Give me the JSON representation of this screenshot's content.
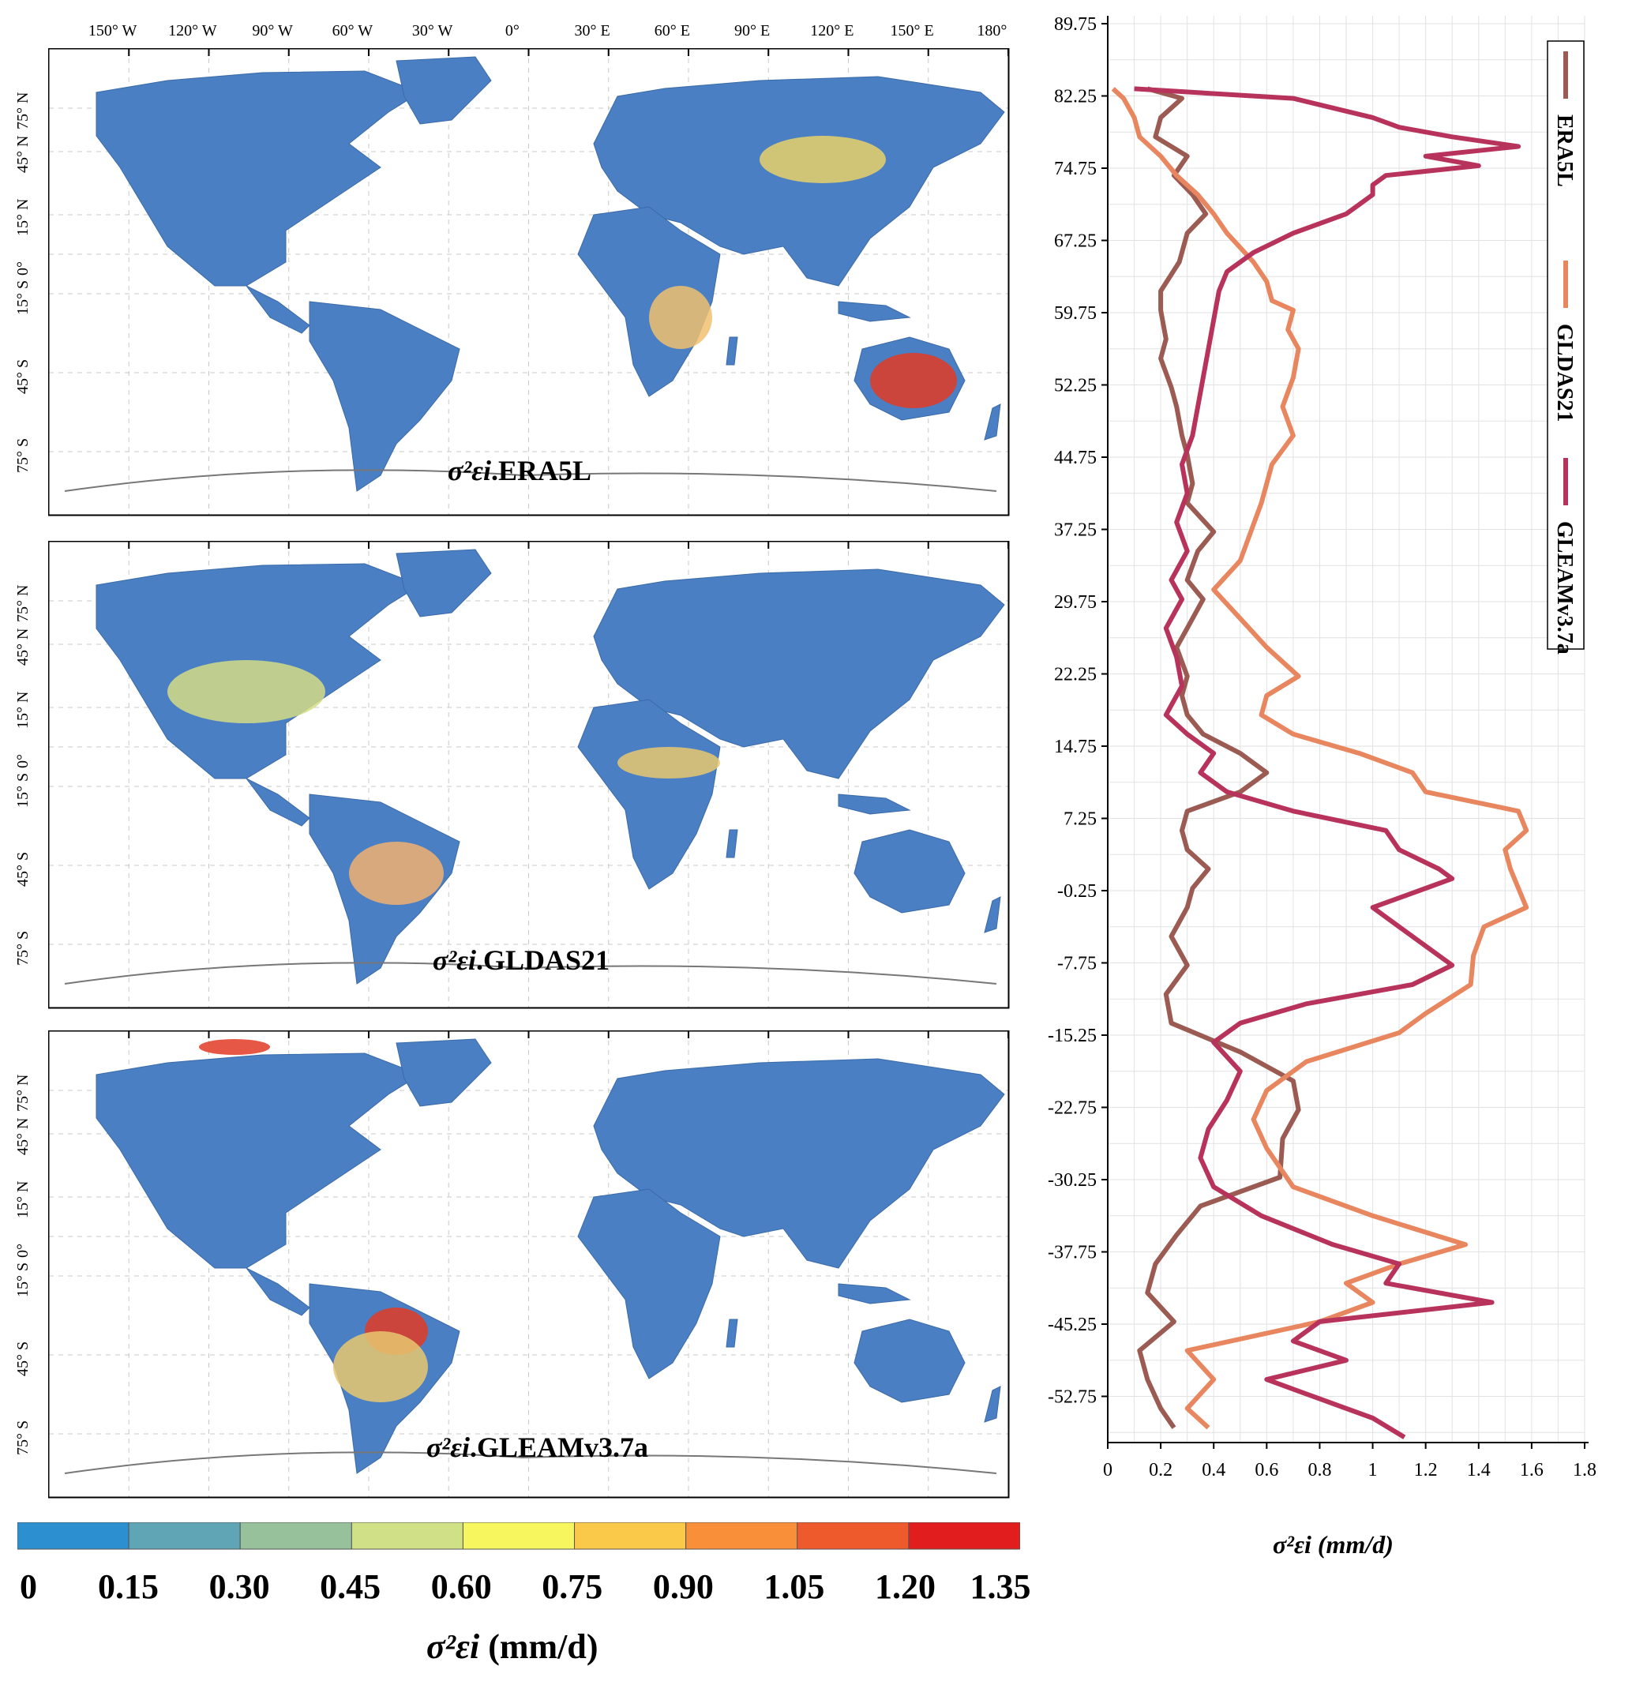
{
  "map": {
    "lon_ticks": [
      "150° W",
      "120° W",
      "90° W",
      "60° W",
      "30° W",
      "0°",
      "30° E",
      "60° E",
      "90° E",
      "120° E",
      "150° E",
      "180°"
    ],
    "lat_ticks": [
      "75° N",
      "45° N",
      "15° N",
      "0°",
      "15° S",
      "45° S",
      "75° S"
    ],
    "panels": [
      {
        "symbol": "σ²εi",
        "name": ".ERA5L"
      },
      {
        "symbol": "σ²εi",
        "name": ".GLDAS21"
      },
      {
        "symbol": "σ²εi",
        "name": ".GLEAMv3.7a"
      }
    ],
    "colorbar": {
      "colors": [
        "#2b8fd0",
        "#5fa5b5",
        "#96c19a",
        "#cfe086",
        "#f7f65e",
        "#fbc94a",
        "#f98f38",
        "#ef5a2c",
        "#e11d1d"
      ],
      "labels": [
        "0",
        "0.15",
        "0.30",
        "0.45",
        "0.60",
        "0.75",
        "0.90",
        "1.05",
        "1.20",
        "1.35"
      ],
      "title_symbol": "σ²εi",
      "title_unit": "(mm/d)"
    }
  },
  "chart_data": {
    "type": "line",
    "orientation": "horizontal-profile",
    "xlabel_symbol": "σ²εi",
    "xlabel_unit": "(mm/d)",
    "xlim": [
      0,
      1.8
    ],
    "ylim": [
      -60,
      89.75
    ],
    "x_ticks": [
      "0",
      "0.2",
      "0.4",
      "0.6",
      "0.8",
      "1",
      "1.2",
      "1.4",
      "1.6",
      "1.8"
    ],
    "y_ticks": [
      "89.75",
      "82.25",
      "74.75",
      "67.25",
      "59.75",
      "52.25",
      "44.75",
      "37.25",
      "29.75",
      "22.25",
      "14.75",
      "7.25",
      "-0.25",
      "-7.75",
      "-15.25",
      "-22.75",
      "-30.25",
      "-37.75",
      "-45.25",
      "-52.75"
    ],
    "legend_position": "top-right",
    "grid": true,
    "series": [
      {
        "name": "ERA5L",
        "color": "#9b5a52",
        "lat": [
          83,
          82,
          80,
          78,
          76,
          74,
          72,
          70,
          68,
          65,
          62,
          60,
          57,
          55,
          52,
          50,
          47,
          45,
          42,
          40,
          37,
          35,
          32,
          30,
          27,
          25,
          22,
          20,
          18,
          16,
          14,
          12,
          10,
          8,
          6,
          4,
          2,
          0,
          -2,
          -5,
          -8,
          -11,
          -14,
          -17,
          -20,
          -23,
          -26,
          -30,
          -33,
          -36,
          -39,
          -42,
          -45,
          -48,
          -51,
          -54,
          -56
        ],
        "x": [
          0.15,
          0.28,
          0.2,
          0.18,
          0.3,
          0.25,
          0.32,
          0.37,
          0.3,
          0.27,
          0.2,
          0.2,
          0.22,
          0.2,
          0.24,
          0.26,
          0.28,
          0.3,
          0.32,
          0.3,
          0.4,
          0.34,
          0.3,
          0.36,
          0.3,
          0.26,
          0.3,
          0.28,
          0.3,
          0.36,
          0.5,
          0.6,
          0.5,
          0.3,
          0.28,
          0.3,
          0.38,
          0.32,
          0.3,
          0.24,
          0.3,
          0.22,
          0.24,
          0.5,
          0.7,
          0.72,
          0.66,
          0.65,
          0.35,
          0.26,
          0.18,
          0.15,
          0.25,
          0.12,
          0.15,
          0.2,
          0.25
        ]
      },
      {
        "name": "GLDAS21",
        "color": "#e8875f",
        "lat": [
          83,
          82,
          80,
          78,
          76,
          74,
          72,
          70,
          68,
          65,
          63,
          61,
          60,
          58,
          56,
          53,
          50,
          47,
          44,
          40,
          37,
          34,
          31,
          28,
          25,
          22,
          20,
          18,
          16,
          14,
          12,
          10,
          8,
          6,
          4,
          2,
          0,
          -2,
          -4,
          -7,
          -10,
          -13,
          -15,
          -18,
          -21,
          -24,
          -27,
          -31,
          -34,
          -37,
          -39,
          -41,
          -43,
          -45,
          -48,
          -51,
          -54,
          -56
        ],
        "x": [
          0.02,
          0.06,
          0.1,
          0.12,
          0.2,
          0.26,
          0.34,
          0.4,
          0.45,
          0.55,
          0.6,
          0.62,
          0.7,
          0.68,
          0.72,
          0.7,
          0.66,
          0.7,
          0.62,
          0.58,
          0.54,
          0.5,
          0.4,
          0.5,
          0.6,
          0.72,
          0.6,
          0.58,
          0.7,
          0.95,
          1.15,
          1.2,
          1.55,
          1.58,
          1.5,
          1.52,
          1.55,
          1.58,
          1.42,
          1.38,
          1.37,
          1.2,
          1.1,
          0.75,
          0.6,
          0.55,
          0.6,
          0.7,
          1.0,
          1.35,
          1.1,
          0.9,
          1.0,
          0.8,
          0.3,
          0.4,
          0.3,
          0.38
        ]
      },
      {
        "name": "GLEAMv3.7a",
        "color": "#b8335c",
        "lat": [
          83,
          82,
          80,
          79,
          78,
          77,
          76,
          75,
          74,
          73,
          72,
          71,
          70,
          68,
          66,
          64,
          62,
          59,
          56,
          53,
          50,
          47,
          44,
          41,
          38,
          35,
          32,
          30,
          27,
          24,
          21,
          18,
          16,
          14,
          12,
          10,
          8,
          6,
          4,
          2,
          1,
          0,
          -2,
          -4,
          -6,
          -8,
          -10,
          -12,
          -14,
          -16,
          -19,
          -22,
          -25,
          -28,
          -31,
          -34,
          -37,
          -39,
          -41,
          -43,
          -45,
          -47,
          -49,
          -51,
          -53,
          -55,
          -57
        ],
        "x": [
          0.1,
          0.7,
          1.0,
          1.1,
          1.3,
          1.55,
          1.2,
          1.4,
          1.05,
          1.0,
          1.0,
          0.95,
          0.9,
          0.7,
          0.55,
          0.45,
          0.42,
          0.4,
          0.38,
          0.36,
          0.34,
          0.32,
          0.28,
          0.3,
          0.26,
          0.3,
          0.24,
          0.28,
          0.22,
          0.26,
          0.28,
          0.22,
          0.3,
          0.4,
          0.35,
          0.45,
          0.7,
          1.05,
          1.1,
          1.25,
          1.3,
          1.2,
          1.0,
          1.1,
          1.2,
          1.3,
          1.15,
          0.75,
          0.5,
          0.4,
          0.5,
          0.45,
          0.38,
          0.35,
          0.4,
          0.58,
          0.85,
          1.1,
          1.05,
          1.45,
          0.8,
          0.7,
          0.9,
          0.6,
          0.8,
          1.0,
          1.12
        ]
      }
    ]
  }
}
